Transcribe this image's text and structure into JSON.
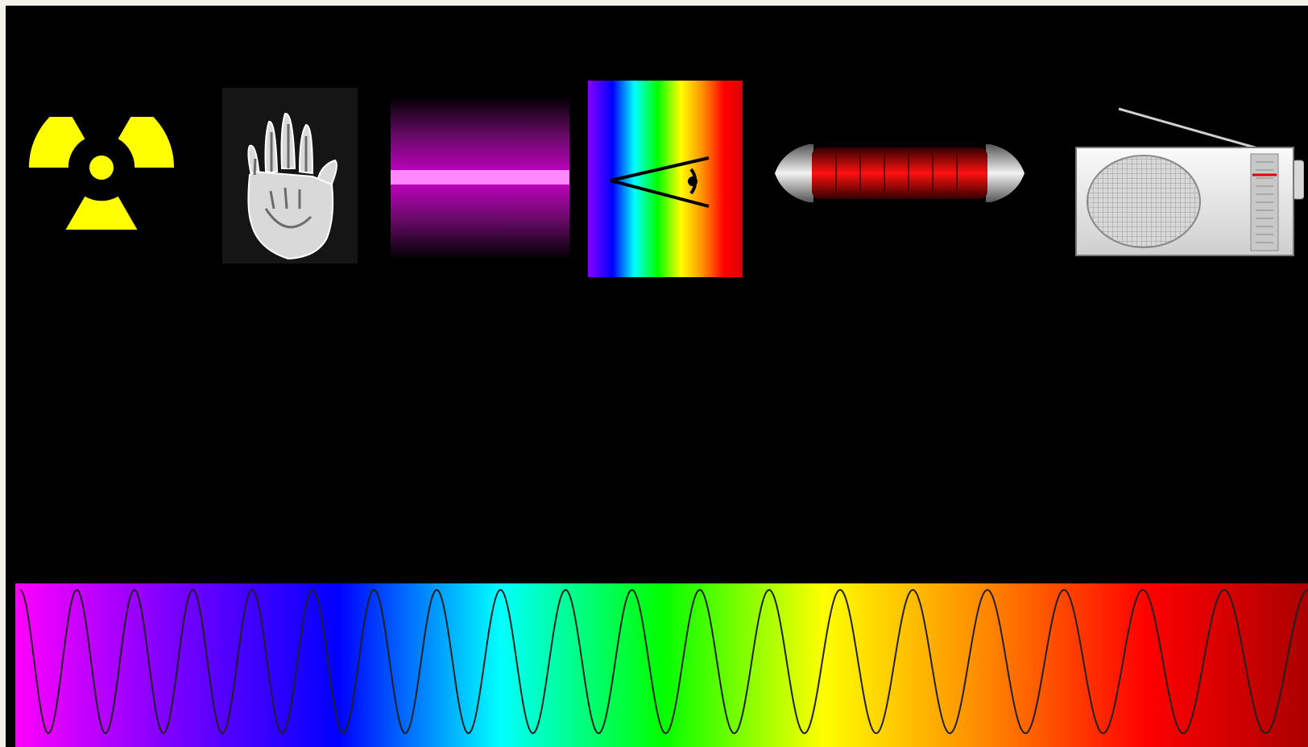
{
  "image": {
    "background": "#000000",
    "border": "#f4f1ea"
  },
  "icons": [
    {
      "name": "radiation-icon",
      "band": "gamma",
      "color": "#ffff00"
    },
    {
      "name": "xray-hand-icon",
      "band": "x-ray"
    },
    {
      "name": "uv-light-icon",
      "band": "ultraviolet",
      "color": "#cc00cc"
    },
    {
      "name": "visible-eye-icon",
      "band": "visible"
    },
    {
      "name": "infrared-heater-icon",
      "band": "infrared",
      "color": "#cc0000"
    },
    {
      "name": "radio-icon",
      "band": "radio"
    }
  ],
  "spectrum": {
    "gradient": [
      "#ff00ff",
      "#7700ff",
      "#0000ff",
      "#00ffff",
      "#00ff00",
      "#ffff00",
      "#ff8800",
      "#ff0000",
      "#aa0000"
    ],
    "wave_cycles": 19,
    "wave_color": "#202020"
  }
}
